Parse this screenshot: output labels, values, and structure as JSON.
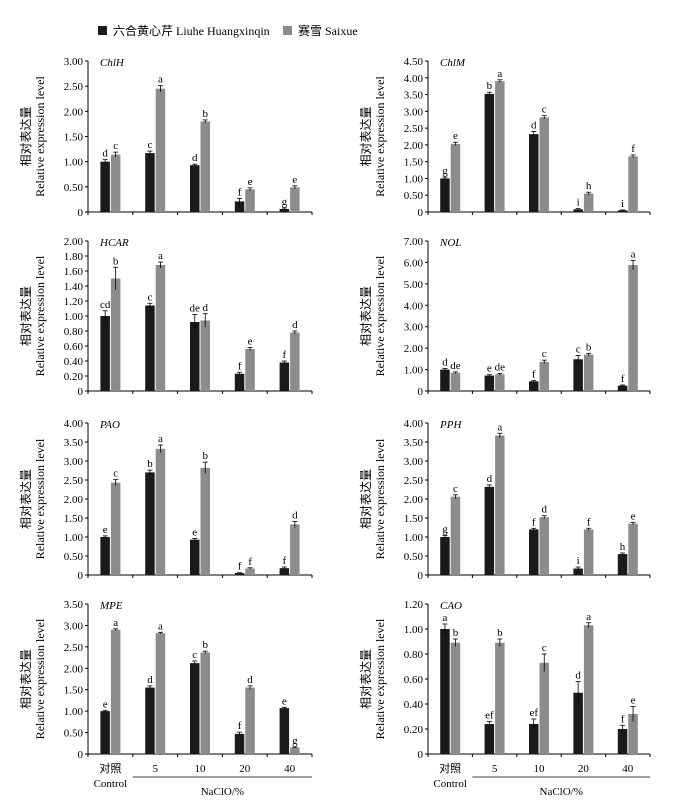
{
  "legend": [
    {
      "label": "六合黄心芹 Liuhe Huangxinqin",
      "color": "#1a1a1a"
    },
    {
      "label": "赛雪 Saixue",
      "color": "#8c8c8c"
    }
  ],
  "x_axis": {
    "categories": [
      "对照",
      "5",
      "10",
      "20",
      "40"
    ],
    "control_sub": "Control",
    "title": "NaClO/%"
  },
  "ylabel_cn": "相对表达量",
  "ylabel_en": "Relative expression level",
  "chart_data": [
    {
      "type": "bar",
      "title": "Chl H",
      "categories": [
        "对照",
        "5",
        "10",
        "20",
        "40"
      ],
      "ylim": [
        0,
        3
      ],
      "ticks": [
        "0",
        "0.50",
        "1.00",
        "1.50",
        "2.00",
        "2.50",
        "3.00"
      ],
      "series": [
        {
          "name": "六合黄心芹 Liuhe Huangxinqin",
          "values": [
            1.0,
            1.17,
            0.93,
            0.21,
            0.06
          ],
          "errors": [
            0.04,
            0.04,
            0.02,
            0.06,
            0.02
          ],
          "labels": [
            "d",
            "c",
            "d",
            "f",
            "g"
          ]
        },
        {
          "name": "赛雪 Saixue",
          "values": [
            1.14,
            2.45,
            1.8,
            0.45,
            0.49
          ],
          "errors": [
            0.05,
            0.06,
            0.03,
            0.03,
            0.03
          ],
          "labels": [
            "c",
            "a",
            "b",
            "e",
            "e"
          ]
        }
      ]
    },
    {
      "type": "bar",
      "title": "Chl M",
      "categories": [
        "对照",
        "5",
        "10",
        "20",
        "40"
      ],
      "ylim": [
        0,
        4.5
      ],
      "ticks": [
        "0",
        "0.50",
        "1.00",
        "1.50",
        "2.00",
        "2.50",
        "3.00",
        "3.50",
        "4.00",
        "4.50"
      ],
      "series": [
        {
          "name": "六合黄心芹 Liuhe Huangxinqin",
          "values": [
            1.0,
            3.52,
            2.32,
            0.08,
            0.05
          ],
          "errors": [
            0.04,
            0.05,
            0.08,
            0.02,
            0.01
          ],
          "labels": [
            "g",
            "b",
            "d",
            "i",
            "i"
          ]
        },
        {
          "name": "赛雪 Saixue",
          "values": [
            2.03,
            3.9,
            2.82,
            0.55,
            1.66
          ],
          "errors": [
            0.05,
            0.04,
            0.05,
            0.04,
            0.04
          ],
          "labels": [
            "e",
            "a",
            "c",
            "h",
            "f"
          ]
        }
      ]
    },
    {
      "type": "bar",
      "title": "HCAR",
      "categories": [
        "对照",
        "5",
        "10",
        "20",
        "40"
      ],
      "ylim": [
        0,
        2
      ],
      "ticks": [
        "0",
        "0.20",
        "0.40",
        "0.60",
        "0.80",
        "1.00",
        "1.20",
        "1.40",
        "1.60",
        "1.80",
        "2.00"
      ],
      "series": [
        {
          "name": "六合黄心芹 Liuhe Huangxinqin",
          "values": [
            1.0,
            1.14,
            0.92,
            0.23,
            0.38
          ],
          "errors": [
            0.07,
            0.03,
            0.1,
            0.02,
            0.02
          ],
          "labels": [
            "cd",
            "c",
            "de",
            "f",
            "f"
          ]
        },
        {
          "name": "赛雪 Saixue",
          "values": [
            1.5,
            1.68,
            0.94,
            0.56,
            0.78
          ],
          "errors": [
            0.15,
            0.04,
            0.09,
            0.02,
            0.02
          ],
          "labels": [
            "b",
            "a",
            "d",
            "e",
            "d"
          ]
        }
      ]
    },
    {
      "type": "bar",
      "title": "NOL",
      "categories": [
        "对照",
        "5",
        "10",
        "20",
        "40"
      ],
      "ylim": [
        0,
        7
      ],
      "ticks": [
        "0",
        "1.00",
        "2.00",
        "3.00",
        "4.00",
        "5.00",
        "6.00",
        "7.00"
      ],
      "series": [
        {
          "name": "六合黄心芹 Liuhe Huangxinqin",
          "values": [
            1.0,
            0.72,
            0.45,
            1.48,
            0.25
          ],
          "errors": [
            0.05,
            0.04,
            0.03,
            0.18,
            0.03
          ],
          "labels": [
            "d",
            "e",
            "f",
            "c",
            "f"
          ]
        },
        {
          "name": "赛雪 Saixue",
          "values": [
            0.85,
            0.78,
            1.36,
            1.7,
            5.88
          ],
          "errors": [
            0.04,
            0.04,
            0.08,
            0.06,
            0.22
          ],
          "labels": [
            "de",
            "de",
            "c",
            "b",
            "a"
          ]
        }
      ]
    },
    {
      "type": "bar",
      "title": "PAO",
      "categories": [
        "对照",
        "5",
        "10",
        "20",
        "40"
      ],
      "ylim": [
        0,
        4
      ],
      "ticks": [
        "0",
        "0.50",
        "1.00",
        "1.50",
        "2.00",
        "2.50",
        "3.00",
        "3.50",
        "4.00"
      ],
      "series": [
        {
          "name": "六合黄心芹 Liuhe Huangxinqin",
          "values": [
            1.0,
            2.7,
            0.93,
            0.05,
            0.18
          ],
          "errors": [
            0.03,
            0.06,
            0.03,
            0.01,
            0.03
          ],
          "labels": [
            "e",
            "b",
            "e",
            "f",
            "f"
          ]
        },
        {
          "name": "赛雪 Saixue",
          "values": [
            2.43,
            3.32,
            2.82,
            0.17,
            1.33
          ],
          "errors": [
            0.08,
            0.1,
            0.15,
            0.02,
            0.08
          ],
          "labels": [
            "c",
            "a",
            "b",
            "f",
            "d"
          ]
        }
      ]
    },
    {
      "type": "bar",
      "title": "PPH",
      "categories": [
        "对照",
        "5",
        "10",
        "20",
        "40"
      ],
      "ylim": [
        0,
        4
      ],
      "ticks": [
        "0",
        "0.50",
        "1.00",
        "1.50",
        "2.00",
        "2.50",
        "3.00",
        "3.50",
        "4.00"
      ],
      "series": [
        {
          "name": "六合黄心芹 Liuhe Huangxinqin",
          "values": [
            1.0,
            2.32,
            1.2,
            0.17,
            0.55
          ],
          "errors": [
            0.04,
            0.05,
            0.03,
            0.04,
            0.03
          ],
          "labels": [
            "g",
            "d",
            "f",
            "i",
            "h"
          ]
        },
        {
          "name": "赛雪 Saixue",
          "values": [
            2.06,
            3.67,
            1.52,
            1.2,
            1.35
          ],
          "errors": [
            0.05,
            0.06,
            0.04,
            0.03,
            0.03
          ],
          "labels": [
            "c",
            "a",
            "d",
            "f",
            "e"
          ]
        }
      ]
    },
    {
      "type": "bar",
      "title": "MPE",
      "categories": [
        "对照",
        "5",
        "10",
        "20",
        "40"
      ],
      "ylim": [
        0,
        3.5
      ],
      "ticks": [
        "0",
        "0.50",
        "1.00",
        "1.50",
        "2.00",
        "2.50",
        "3.00",
        "3.50"
      ],
      "series": [
        {
          "name": "六合黄心芹 Liuhe Huangxinqin",
          "values": [
            1.0,
            1.55,
            2.12,
            0.47,
            1.07
          ],
          "errors": [
            0.02,
            0.04,
            0.05,
            0.04,
            0.02
          ],
          "labels": [
            "e",
            "d",
            "c",
            "f",
            "e"
          ]
        },
        {
          "name": "赛雪 Saixue",
          "values": [
            2.9,
            2.82,
            2.37,
            1.55,
            0.15
          ],
          "errors": [
            0.02,
            0.02,
            0.03,
            0.04,
            0.01
          ],
          "labels": [
            "a",
            "a",
            "b",
            "d",
            "g"
          ]
        }
      ]
    },
    {
      "type": "bar",
      "title": "CAO",
      "categories": [
        "对照",
        "5",
        "10",
        "20",
        "40"
      ],
      "ylim": [
        0,
        1.2
      ],
      "ticks": [
        "0",
        "0.20",
        "0.40",
        "0.60",
        "0.80",
        "1.00",
        "1.20"
      ],
      "series": [
        {
          "name": "六合黄心芹 Liuhe Huangxinqin",
          "values": [
            1.0,
            0.24,
            0.24,
            0.49,
            0.2
          ],
          "errors": [
            0.04,
            0.02,
            0.04,
            0.09,
            0.03
          ],
          "labels": [
            "a",
            "ef",
            "ef",
            "d",
            "f"
          ]
        },
        {
          "name": "赛雪 Saixue",
          "values": [
            0.89,
            0.89,
            0.73,
            1.03,
            0.32
          ],
          "errors": [
            0.03,
            0.03,
            0.07,
            0.02,
            0.06
          ],
          "labels": [
            "b",
            "b",
            "c",
            "a",
            "e"
          ]
        }
      ]
    }
  ]
}
